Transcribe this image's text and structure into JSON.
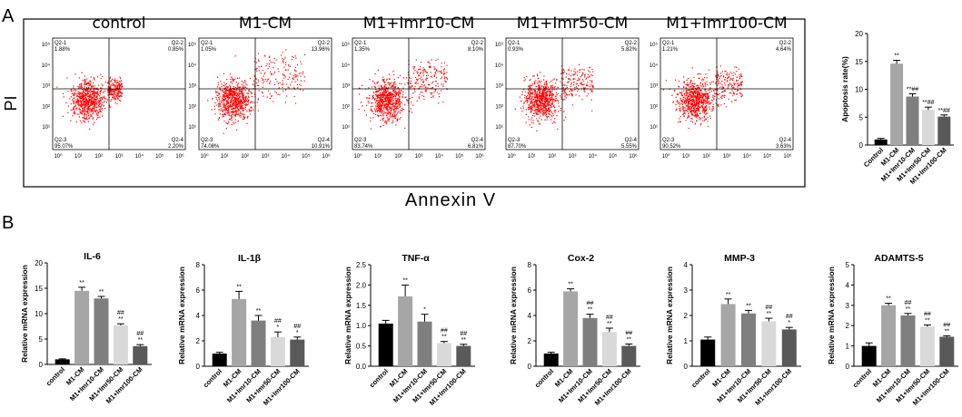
{
  "panels": {
    "a": "A",
    "b": "B"
  },
  "flow": {
    "y_axis_label": "PI",
    "x_axis_label": "Annexin V",
    "tick_labels": [
      "10⁰",
      "10¹",
      "10²",
      "10³",
      "10⁴",
      "10⁵",
      "10⁶"
    ],
    "plots": [
      {
        "title": "control",
        "q1": "Q2-1",
        "q1v": "1.88%",
        "q2": "Q2-2",
        "q2v": "0.85%",
        "q3": "Q2-3",
        "q3v": "95.07%",
        "q4": "Q2-4",
        "q4v": "2.20%"
      },
      {
        "title": "M1-CM",
        "q1": "Q2-1",
        "q1v": "1.05%",
        "q2": "Q2-2",
        "q2v": "13.96%",
        "q3": "Q2-3",
        "q3v": "74.08%",
        "q4": "Q2-4",
        "q4v": "10.91%"
      },
      {
        "title": "M1+Imr10-CM",
        "q1": "Q2-1",
        "q1v": "1.35%",
        "q2": "Q2-2",
        "q2v": "8.10%",
        "q3": "Q2-3",
        "q3v": "83.74%",
        "q4": "Q2-4",
        "q4v": "6.81%"
      },
      {
        "title": "M1+Imr50-CM",
        "q1": "Q2-1",
        "q1v": "0.93%",
        "q2": "Q2-2",
        "q2v": "5.82%",
        "q3": "Q2-3",
        "q3v": "87.70%",
        "q4": "Q2-4",
        "q4v": "5.55%"
      },
      {
        "title": "M1+Imr100-CM",
        "q1": "Q2-1",
        "q1v": "1.21%",
        "q2": "Q2-2",
        "q2v": "4.64%",
        "q3": "Q2-3",
        "q3v": "90.52%",
        "q4": "Q2-4",
        "q4v": "3.63%"
      }
    ]
  },
  "colors": {
    "black": "#000000",
    "gray1": "#a6a6a6",
    "gray2": "#7f7f7f",
    "gray3": "#d9d9d9",
    "gray4": "#595959",
    "dots": "#ff0000"
  },
  "chart_data": [
    {
      "type": "bar",
      "title": "",
      "ylabel": "Apoptosis rate(%)",
      "xlabel": "",
      "categories": [
        "Control",
        "M1-CM",
        "M1+Imr10-CM",
        "M1+Imr50-CM",
        "M1+Imr100-CM"
      ],
      "values": [
        1.0,
        14.6,
        8.7,
        6.3,
        5.1
      ],
      "errors": [
        0.2,
        0.6,
        0.5,
        0.5,
        0.3
      ],
      "annotations": [
        "",
        "**",
        "**##",
        "**##",
        "**##"
      ],
      "ylim": [
        0,
        20
      ],
      "yticks": [
        0,
        5,
        10,
        15,
        20
      ],
      "ytick_labels": [
        "0",
        "5",
        "10",
        "15",
        "20"
      ]
    },
    {
      "type": "bar",
      "title": "IL-6",
      "ylabel": "Relative mRNA expression",
      "xlabel": "",
      "categories": [
        "control",
        "M1-CM",
        "M1+Imr10-CM",
        "M1+Imr50-CM",
        "M1+Imr100-CM"
      ],
      "values": [
        1.0,
        14.5,
        13.0,
        7.7,
        3.6
      ],
      "errors": [
        0.1,
        0.7,
        0.4,
        0.3,
        0.3
      ],
      "annotations": [
        "",
        "**",
        "**",
        "##\n**",
        "##\n**"
      ],
      "ylim": [
        0,
        20
      ],
      "yticks": [
        0,
        5,
        10,
        15,
        20
      ],
      "ytick_labels": [
        "0",
        "5",
        "10",
        "15",
        "20"
      ]
    },
    {
      "type": "bar",
      "title": "IL-1β",
      "ylabel": "Relative mRNA expression",
      "xlabel": "",
      "categories": [
        "control",
        "M1-CM",
        "M1+Imr10-CM",
        "M1+Imr50-CM",
        "M1+Imr100-CM"
      ],
      "values": [
        1.0,
        5.3,
        3.6,
        2.3,
        2.1
      ],
      "errors": [
        0.1,
        0.6,
        0.4,
        0.4,
        0.2
      ],
      "annotations": [
        "",
        "**",
        "**",
        "##\n*",
        "##\n*"
      ],
      "ylim": [
        0,
        8
      ],
      "yticks": [
        0,
        2,
        4,
        6,
        8
      ],
      "ytick_labels": [
        "0",
        "2",
        "4",
        "6",
        "8"
      ]
    },
    {
      "type": "bar",
      "title": "TNF-α",
      "ylabel": "Relative mRNA expression",
      "xlabel": "",
      "categories": [
        "control",
        "M1-CM",
        "M1+Imr10-CM",
        "M1+Imr50-CM",
        "M1+Imr100-CM"
      ],
      "values": [
        1.05,
        1.72,
        1.1,
        0.57,
        0.5
      ],
      "errors": [
        0.08,
        0.28,
        0.18,
        0.04,
        0.04
      ],
      "annotations": [
        "",
        "**",
        "*",
        "##\n**",
        "##\n**"
      ],
      "ylim": [
        0,
        2.5
      ],
      "yticks": [
        0,
        0.5,
        1.0,
        1.5,
        2.0,
        2.5
      ],
      "ytick_labels": [
        "0.0",
        "0.5",
        "1.0",
        "1.5",
        "2.0",
        "2.5"
      ]
    },
    {
      "type": "bar",
      "title": "Cox-2",
      "ylabel": "Relative mRNA expression",
      "xlabel": "",
      "categories": [
        "control",
        "M1-CM",
        "M1+Imr10-CM",
        "M1+Imr50-CM",
        "M1+Imr100-CM"
      ],
      "values": [
        1.0,
        5.9,
        3.8,
        2.7,
        1.6
      ],
      "errors": [
        0.1,
        0.2,
        0.3,
        0.3,
        0.15
      ],
      "annotations": [
        "",
        "**",
        "##\n**",
        "##\n**",
        "##\n**"
      ],
      "ylim": [
        0,
        8
      ],
      "yticks": [
        0,
        2,
        4,
        6,
        8
      ],
      "ytick_labels": [
        "0",
        "2",
        "4",
        "6",
        "8"
      ]
    },
    {
      "type": "bar",
      "title": "MMP-3",
      "ylabel": "Relative mRNA expression",
      "xlabel": "",
      "categories": [
        "control",
        "M1-CM",
        "M1+Imr10-CM",
        "M1+Imr50-CM",
        "M1+Imr100-CM"
      ],
      "values": [
        1.05,
        2.45,
        2.08,
        1.77,
        1.45
      ],
      "errors": [
        0.1,
        0.2,
        0.12,
        0.12,
        0.08
      ],
      "annotations": [
        "",
        "**",
        "**",
        "##\n**",
        "##\n*"
      ],
      "ylim": [
        0,
        4
      ],
      "yticks": [
        0,
        1,
        2,
        3,
        4
      ],
      "ytick_labels": [
        "0",
        "1",
        "2",
        "3",
        "4"
      ]
    },
    {
      "type": "bar",
      "title": "ADAMTS-5",
      "ylabel": "Relative mRNA expression",
      "xlabel": "",
      "categories": [
        "control",
        "M1-CM",
        "M1+Imr10-CM",
        "M1+Imr50-CM",
        "M1+Imr100-CM"
      ],
      "values": [
        1.0,
        3.0,
        2.5,
        1.95,
        1.45
      ],
      "errors": [
        0.15,
        0.1,
        0.1,
        0.08,
        0.05
      ],
      "annotations": [
        "",
        "**",
        "##\n**",
        "##\n**",
        "##\n**"
      ],
      "ylim": [
        0,
        5
      ],
      "yticks": [
        0,
        1,
        2,
        3,
        4,
        5
      ],
      "ytick_labels": [
        "0",
        "1",
        "2",
        "3",
        "4",
        "5"
      ]
    }
  ]
}
